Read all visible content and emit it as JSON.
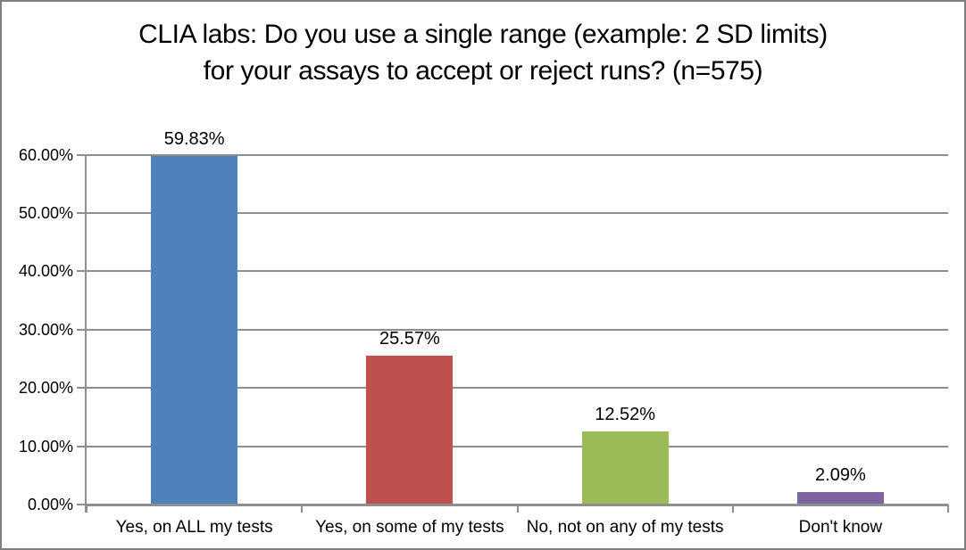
{
  "chart_data": {
    "type": "bar",
    "title": "CLIA labs: Do you use a single range (example: 2 SD limits) for your assays to accept or reject runs? (n=575)",
    "n_label": "(n=575)",
    "categories": [
      "Yes, on ALL my tests",
      "Yes, on some of my tests",
      "No, not on any of my tests",
      "Don't know"
    ],
    "values": [
      59.83,
      25.57,
      12.52,
      2.09
    ],
    "value_labels": [
      "59.83%",
      "25.57%",
      "12.52%",
      "2.09%"
    ],
    "bar_colors": [
      "#4f81bd",
      "#c0504d",
      "#9bbb59",
      "#8064a2"
    ],
    "ytick_labels": [
      "0.00%",
      "10.00%",
      "20.00%",
      "30.00%",
      "40.00%",
      "50.00%",
      "60.00%"
    ],
    "ylim": [
      0,
      60
    ],
    "ytick_step": 10,
    "grid": true,
    "legend": "none",
    "xlabel": "",
    "ylabel": "",
    "gridline_color": "#8e8e8e",
    "axis_color": "#8e8e8e",
    "text_color": "#000000",
    "background_color": "#ffffff",
    "border_color": "#7f7f7f"
  }
}
